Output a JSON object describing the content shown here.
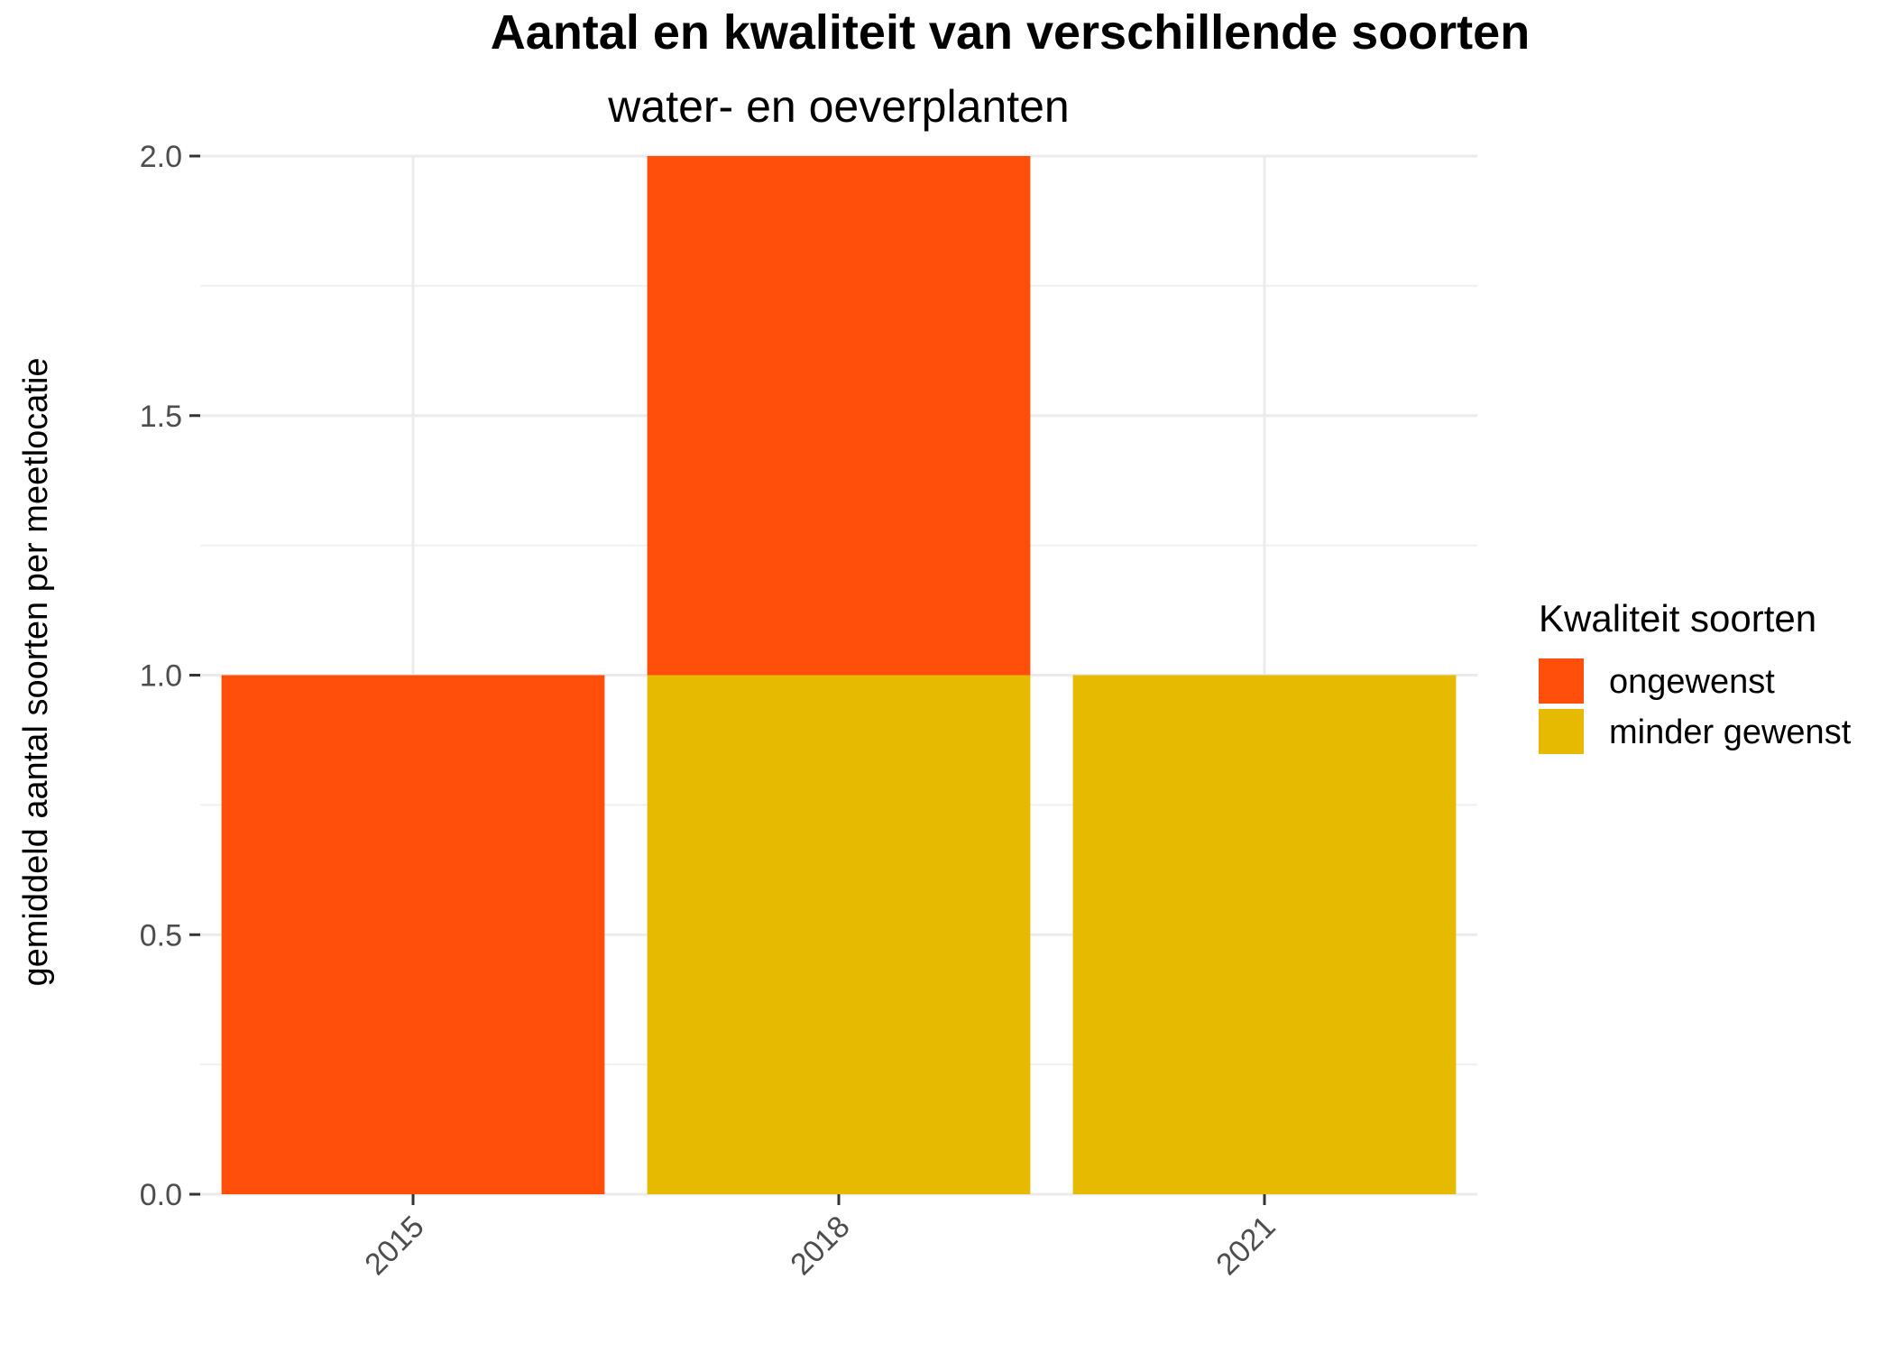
{
  "chart_data": {
    "type": "bar",
    "stacked": true,
    "title": "Aantal en kwaliteit van verschillende soorten",
    "subtitle": "water- en oeverplanten",
    "xlabel": "",
    "ylabel": "gemiddeld aantal soorten per meetlocatie",
    "categories": [
      "2015",
      "2018",
      "2021"
    ],
    "ylim": [
      0,
      2
    ],
    "yticks": [
      0,
      0.5,
      1,
      1.5,
      2
    ],
    "ytick_labels": [
      "0.0",
      "0.5",
      "1.0",
      "1.5",
      "2.0"
    ],
    "grid": true,
    "legend": {
      "title": "Kwaliteit soorten",
      "position": "right"
    },
    "series": [
      {
        "name": "minder gewenst",
        "color": "#E6BA00",
        "values": [
          0,
          1,
          1
        ]
      },
      {
        "name": "ongewenst",
        "color": "#FF4F0A",
        "values": [
          1,
          1,
          0
        ]
      }
    ],
    "legend_order": [
      "ongewenst",
      "minder gewenst"
    ]
  }
}
